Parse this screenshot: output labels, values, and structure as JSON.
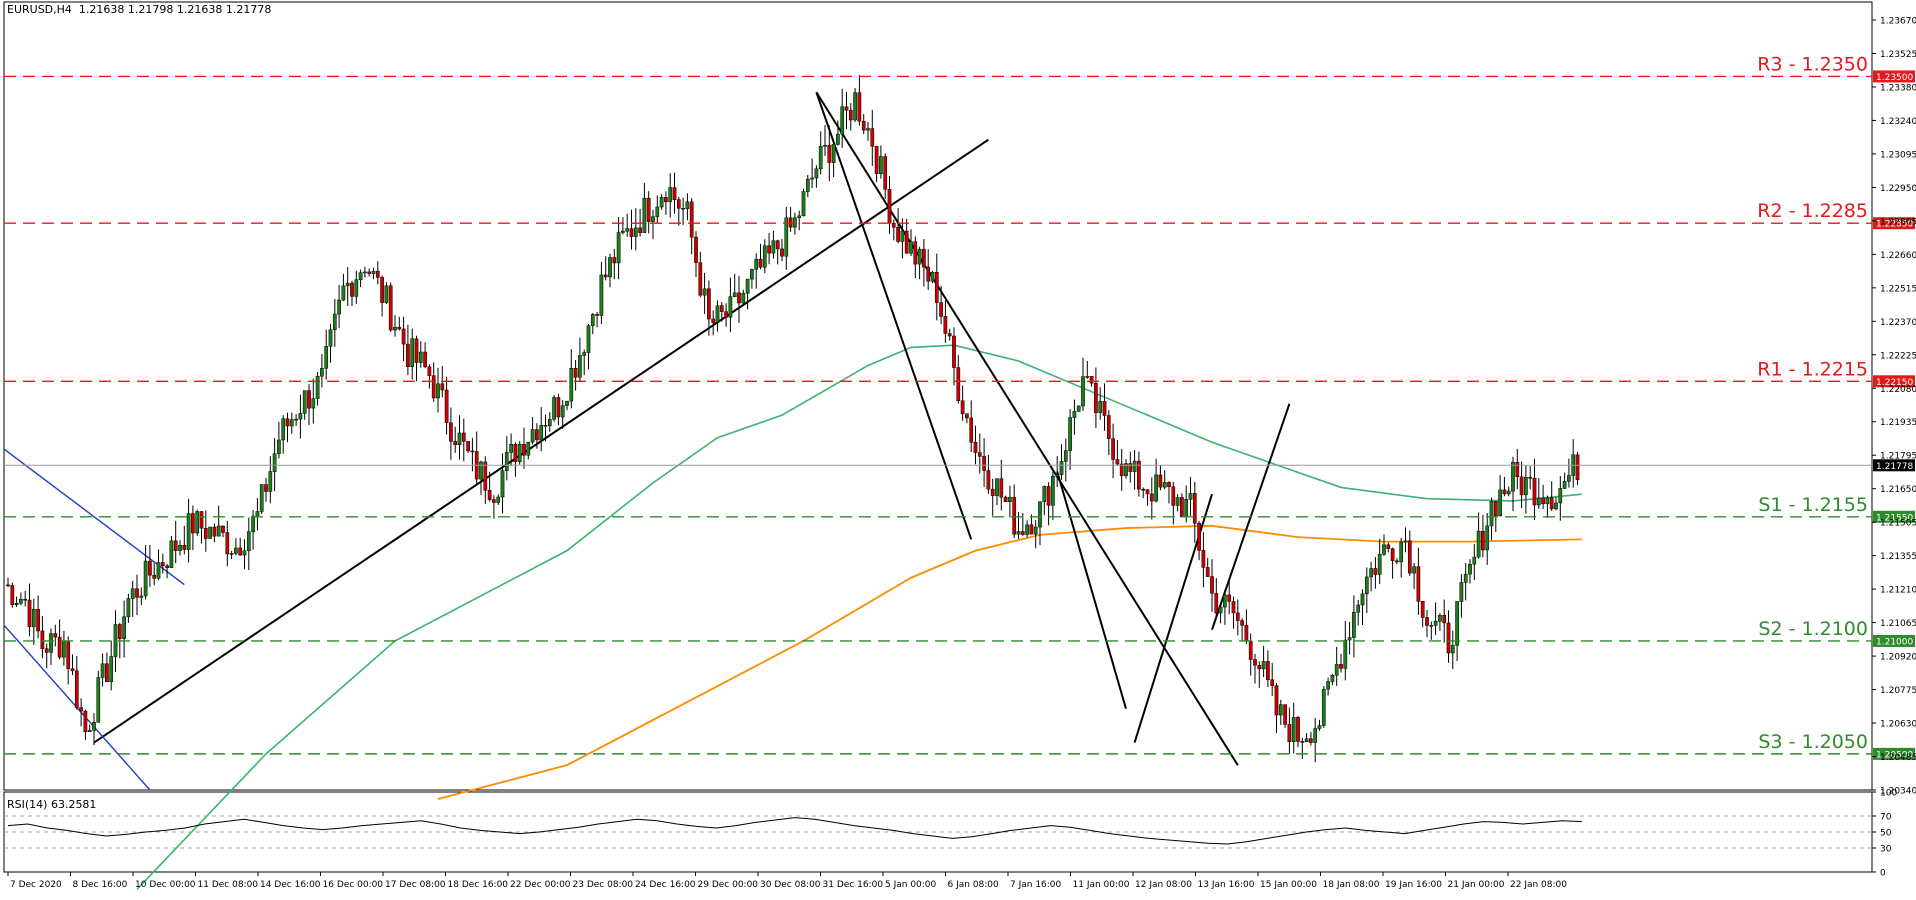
{
  "header": {
    "symbol_tf": "EURUSD,H4",
    "ohlc": "1.21638 1.21798 1.21638 1.21778"
  },
  "indicator": {
    "label": "RSI(14) 63.2581",
    "color": "#000000"
  },
  "colors": {
    "bull": "#1a7f1a",
    "bear": "#cc0000",
    "ma_green": "#3cb371",
    "ma_orange": "#ff8c00",
    "resistance": "#e31a1c",
    "support": "#2e8b2e",
    "trend": "#000000",
    "channel": "#1f3fbf"
  },
  "chart_data": {
    "type": "candlestick",
    "symbol": "EURUSD",
    "timeframe": "H4",
    "ylim": [
      1.2034,
      1.2375
    ],
    "price_ticks": [
      "1.23670",
      "1.23525",
      "1.23380",
      "1.23240",
      "1.23095",
      "1.22950",
      "1.22805",
      "1.22660",
      "1.22515",
      "1.22370",
      "1.22225",
      "1.22080",
      "1.21935",
      "1.21795",
      "1.21650",
      "1.21505",
      "1.21355",
      "1.21210",
      "1.21065",
      "1.20920",
      "1.20775",
      "1.20630",
      "1.20485",
      "1.20340"
    ],
    "x_tick_labels": [
      "7 Dec 2020",
      "8 Dec 16:00",
      "10 Dec 00:00",
      "11 Dec 08:00",
      "14 Dec 16:00",
      "16 Dec 00:00",
      "17 Dec 08:00",
      "18 Dec 16:00",
      "22 Dec 00:00",
      "23 Dec 08:00",
      "24 Dec 16:00",
      "29 Dec 00:00",
      "30 Dec 08:00",
      "31 Dec 16:00",
      "5 Jan 00:00",
      "6 Jan 08:00",
      "7 Jan 16:00",
      "11 Jan 00:00",
      "12 Jan 08:00",
      "13 Jan 16:00",
      "15 Jan 00:00",
      "18 Jan 08:00",
      "19 Jan 16:00",
      "21 Jan 00:00",
      "22 Jan 08:00"
    ],
    "current_price": "1.21778",
    "levels": [
      {
        "label": "R3 - 1.2350",
        "value": 1.235,
        "tag": "1.23500",
        "kind": "resistance"
      },
      {
        "label": "R2 - 1.2285",
        "value": 1.2285,
        "tag": "1.22850",
        "kind": "resistance"
      },
      {
        "label": "R1 - 1.2215",
        "value": 1.2215,
        "tag": "1.22150",
        "kind": "resistance"
      },
      {
        "label": "S1 - 1.2155",
        "value": 1.2155,
        "tag": "1.21550",
        "kind": "support"
      },
      {
        "label": "S2 - 1.2100",
        "value": 1.21,
        "tag": "1.21000",
        "kind": "support"
      },
      {
        "label": "S3 - 1.2050",
        "value": 1.205,
        "tag": "1.20500",
        "kind": "support"
      }
    ],
    "price_path": [
      [
        0,
        1.2125
      ],
      [
        5,
        1.2118
      ],
      [
        9,
        1.2098
      ],
      [
        14,
        1.21
      ],
      [
        19,
        1.206
      ],
      [
        24,
        1.2088
      ],
      [
        29,
        1.2118
      ],
      [
        34,
        1.213
      ],
      [
        39,
        1.214
      ],
      [
        44,
        1.2152
      ],
      [
        49,
        1.2148
      ],
      [
        54,
        1.2142
      ],
      [
        59,
        1.2155
      ],
      [
        64,
        1.219
      ],
      [
        69,
        1.2205
      ],
      [
        74,
        1.2215
      ],
      [
        79,
        1.2255
      ],
      [
        84,
        1.2268
      ],
      [
        89,
        1.225
      ],
      [
        94,
        1.2228
      ],
      [
        99,
        1.2218
      ],
      [
        104,
        1.2196
      ],
      [
        109,
        1.2178
      ],
      [
        114,
        1.2168
      ],
      [
        119,
        1.2185
      ],
      [
        124,
        1.2196
      ],
      [
        129,
        1.2205
      ],
      [
        134,
        1.2228
      ],
      [
        139,
        1.2258
      ],
      [
        144,
        1.2278
      ],
      [
        149,
        1.229
      ],
      [
        154,
        1.2302
      ],
      [
        159,
        1.2288
      ],
      [
        164,
        1.224
      ],
      [
        169,
        1.2245
      ],
      [
        174,
        1.226
      ],
      [
        179,
        1.2272
      ],
      [
        184,
        1.2285
      ],
      [
        189,
        1.231
      ],
      [
        194,
        1.2325
      ],
      [
        198,
        1.234
      ],
      [
        202,
        1.2322
      ],
      [
        207,
        1.2285
      ],
      [
        212,
        1.227
      ],
      [
        217,
        1.2255
      ],
      [
        221,
        1.222
      ],
      [
        226,
        1.2185
      ],
      [
        231,
        1.2168
      ],
      [
        236,
        1.215
      ],
      [
        241,
        1.2158
      ],
      [
        246,
        1.2182
      ],
      [
        251,
        1.2215
      ],
      [
        256,
        1.2195
      ],
      [
        261,
        1.2175
      ],
      [
        266,
        1.2168
      ],
      [
        271,
        1.2165
      ],
      [
        276,
        1.2158
      ],
      [
        281,
        1.212
      ],
      [
        286,
        1.2112
      ],
      [
        291,
        1.2095
      ],
      [
        296,
        1.2068
      ],
      [
        301,
        1.2058
      ],
      [
        306,
        1.2065
      ],
      [
        311,
        1.2095
      ],
      [
        316,
        1.2125
      ],
      [
        321,
        1.214
      ],
      [
        326,
        1.2145
      ],
      [
        331,
        1.211
      ],
      [
        336,
        1.21
      ],
      [
        341,
        1.213
      ],
      [
        346,
        1.216
      ],
      [
        351,
        1.2172
      ],
      [
        356,
        1.2168
      ],
      [
        361,
        1.2165
      ],
      [
        366,
        1.2178
      ]
    ],
    "ma_green": [
      [
        30,
        1.199
      ],
      [
        60,
        1.205
      ],
      [
        90,
        1.21
      ],
      [
        110,
        1.212
      ],
      [
        130,
        1.214
      ],
      [
        150,
        1.217
      ],
      [
        165,
        1.219
      ],
      [
        180,
        1.22
      ],
      [
        200,
        1.2222
      ],
      [
        210,
        1.223
      ],
      [
        220,
        1.2231
      ],
      [
        235,
        1.2224
      ],
      [
        250,
        1.2212
      ],
      [
        265,
        1.22
      ],
      [
        280,
        1.2188
      ],
      [
        295,
        1.2178
      ],
      [
        310,
        1.2168
      ],
      [
        330,
        1.2163
      ],
      [
        350,
        1.2162
      ],
      [
        366,
        1.2165
      ]
    ],
    "ma_orange": [
      [
        100,
        1.203
      ],
      [
        130,
        1.2045
      ],
      [
        155,
        1.207
      ],
      [
        185,
        1.21
      ],
      [
        210,
        1.2128
      ],
      [
        225,
        1.214
      ],
      [
        240,
        1.2147
      ],
      [
        260,
        1.215
      ],
      [
        280,
        1.2151
      ],
      [
        300,
        1.2146
      ],
      [
        320,
        1.2144
      ],
      [
        340,
        1.2144
      ],
      [
        366,
        1.2145
      ]
    ],
    "rsi": {
      "ylim": [
        0,
        100
      ],
      "ticks": [
        "100",
        "70",
        "50",
        "30",
        "0"
      ],
      "levels": [
        70,
        50,
        30
      ],
      "values": [
        58,
        60,
        55,
        52,
        48,
        45,
        47,
        50,
        52,
        55,
        60,
        63,
        66,
        62,
        58,
        55,
        53,
        55,
        58,
        60,
        62,
        64,
        60,
        55,
        52,
        50,
        48,
        50,
        53,
        56,
        60,
        63,
        66,
        64,
        60,
        57,
        55,
        58,
        62,
        65,
        68,
        66,
        62,
        58,
        55,
        52,
        48,
        45,
        42,
        44,
        48,
        52,
        55,
        58,
        56,
        52,
        48,
        45,
        42,
        40,
        38,
        36,
        35,
        38,
        42,
        46,
        50,
        53,
        55,
        52,
        50,
        48,
        52,
        56,
        60,
        63,
        62,
        60,
        62,
        64,
        63
      ]
    }
  }
}
